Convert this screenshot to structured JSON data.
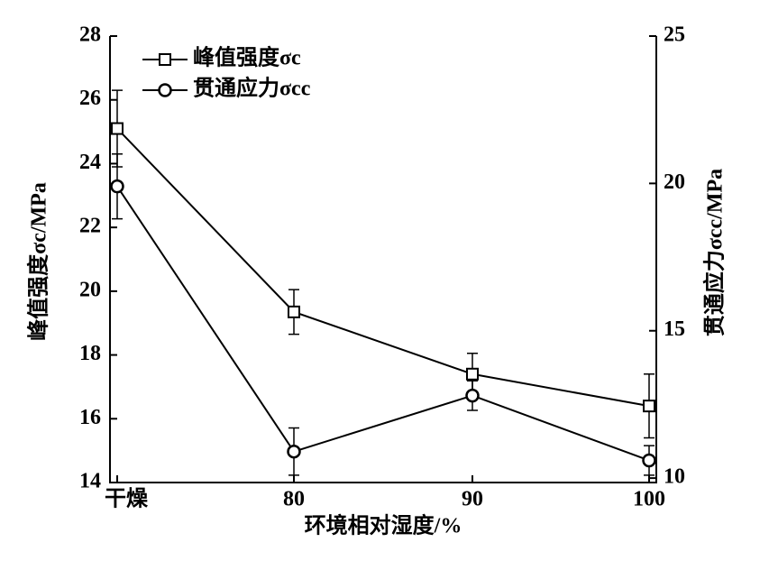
{
  "chart_data": {
    "type": "line",
    "categories": [
      "干燥",
      "80",
      "90",
      "100"
    ],
    "x_label": "环境相对湿度/%",
    "y_label": "峰值强度σc/MPa",
    "y2_label": "贯通应力σcc/MPa",
    "ylim": [
      14,
      28
    ],
    "yticks": [
      14,
      16,
      18,
      20,
      22,
      24,
      26,
      28
    ],
    "y2lim": [
      9.85,
      25
    ],
    "y2ticks": [
      10,
      15,
      20,
      25
    ],
    "legend": "upper left",
    "series": [
      {
        "name": "峰值强度σc",
        "color": "#000000",
        "marker": "square",
        "axis": "y",
        "values": [
          25.1,
          19.35,
          17.4,
          16.4
        ],
        "errors": [
          1.2,
          0.7,
          0.65,
          1.0
        ]
      },
      {
        "name": "贯通应力σcc",
        "color": "#000000",
        "marker": "circle",
        "axis": "y2",
        "values": [
          19.9,
          10.9,
          12.8,
          10.6
        ],
        "errors": [
          1.1,
          0.8,
          0.5,
          0.5
        ]
      }
    ]
  }
}
